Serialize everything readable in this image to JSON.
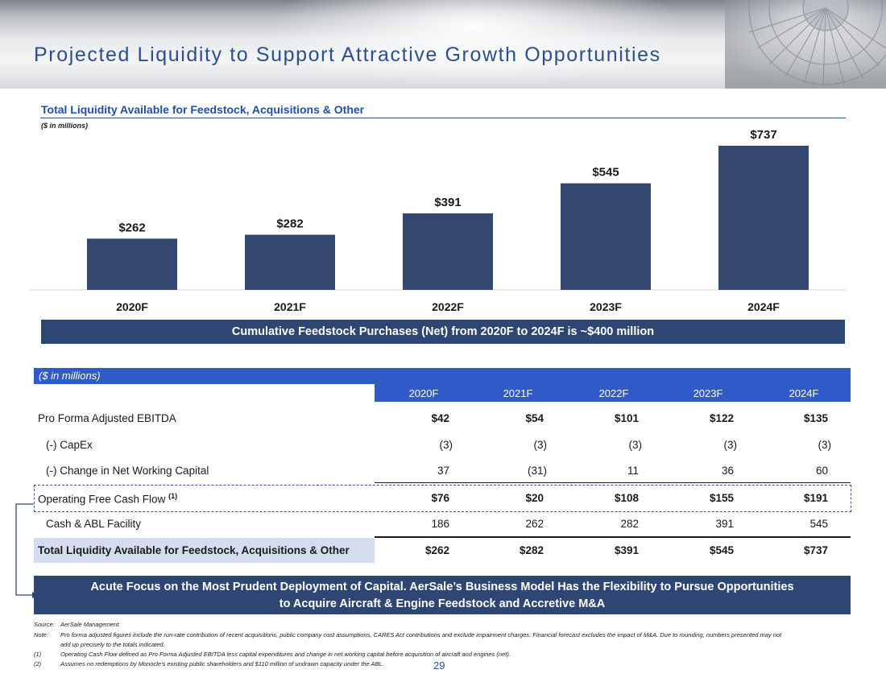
{
  "title": "Projected Liquidity to Support Attractive Growth Opportunities",
  "chart_heading": "Total Liquidity Available for Feedstock, Acquisitions & Other",
  "chart_units": "($ in millions)",
  "chart_data": {
    "type": "bar",
    "title": "Total Liquidity Available for Feedstock, Acquisitions & Other",
    "categories": [
      "2020F",
      "2021F",
      "2022F",
      "2023F",
      "2024F"
    ],
    "values": [
      262,
      282,
      391,
      545,
      737
    ],
    "value_labels": [
      "$262",
      "$282",
      "$391",
      "$545",
      "$737"
    ],
    "ylim": [
      0,
      800
    ],
    "bar_color": "#34476f",
    "grid": false,
    "legend": "none"
  },
  "cumulative_banner": "Cumulative Feedstock Purchases (Net) from 2020F to 2024F is ~$400 million",
  "table": {
    "units": "($ in millions)",
    "years": [
      "2020F",
      "2021F",
      "2022F",
      "2023F",
      "2024F"
    ],
    "rows": [
      {
        "label": "Pro Forma Adjusted EBITDA",
        "values": [
          "$42",
          "$54",
          "$101",
          "$122",
          "$135"
        ]
      },
      {
        "label": "(-) CapEx",
        "values": [
          "(3)",
          "(3)",
          "(3)",
          "(3)",
          "(3)"
        ]
      },
      {
        "label": "(-) Change in Net Working Capital",
        "values": [
          "37",
          "(31)",
          "11",
          "36",
          "60"
        ]
      },
      {
        "label": "Operating Free Cash Flow",
        "sup": "(1)",
        "values": [
          "$76",
          "$20",
          "$108",
          "$155",
          "$191"
        ]
      },
      {
        "label": "Cash & ABL Facility",
        "values": [
          "186",
          "262",
          "282",
          "391",
          "545"
        ]
      },
      {
        "label": "Total Liquidity Available for Feedstock, Acquisitions & Other",
        "values": [
          "$262",
          "$282",
          "$391",
          "$545",
          "$737"
        ]
      }
    ]
  },
  "focus_banner": {
    "line1": "Acute Focus on the Most Prudent Deployment of Capital. AerSale’s Business Model Has the Flexibility to Pursue Opportunities",
    "line2": "to Acquire Aircraft & Engine Feedstock and Accretive M&A"
  },
  "footnotes": [
    {
      "tag": "Source:",
      "text": "AerSale Management."
    },
    {
      "tag": "Note:",
      "text": "Pro forma adjusted figures include the run-rate contribution of recent acquisitions, public company cost assumptions, CARES Act contributions and exclude impairment charges. Financial forecast excludes the impact of M&A. Due to rounding, numbers presented may not"
    },
    {
      "tag": "",
      "text": "add up precisely to the totals indicated."
    },
    {
      "tag": "(1)",
      "text": "Operating Cash Flow defined as Pro Forma Adjusted EBITDA less capital expenditures and change in net working capital before acquisition of aircraft and engines (net)."
    },
    {
      "tag": "(2)",
      "text": "Assumes no redemptions by Monocle’s existing public shareholders and $110 million of undrawn capacity under the ABL."
    }
  ],
  "page_number": "29"
}
